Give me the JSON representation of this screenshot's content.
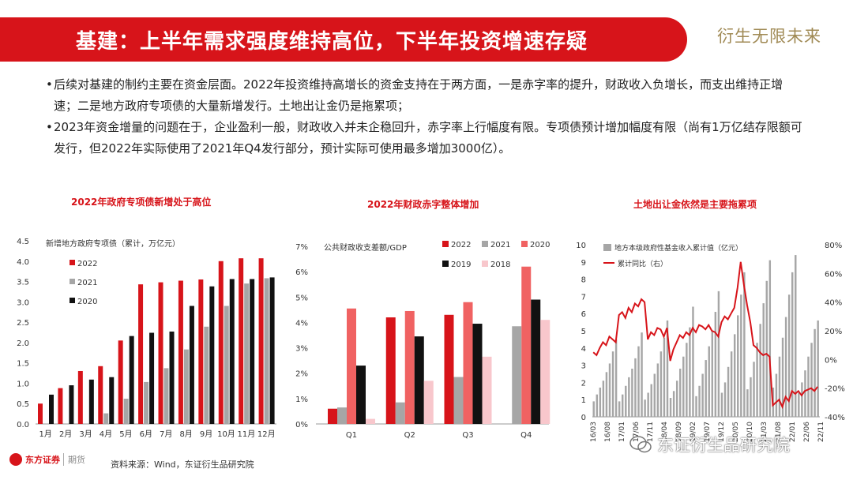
{
  "header": {
    "title": "基建：上半年需求强度维持高位，下半年投资增速存疑",
    "brand": "衍生无限未来"
  },
  "bullets": [
    "后续对基建的制约主要在资金层面。2022年投资维持高增长的资金支持在于两方面，一是赤字率的提升，财政收入负增长，而支出维持正增速；二是地方政府专项债的大量新增发行。土地出让金仍是拖累项；",
    "2023年资金增量的问题在于，企业盈利一般，财政收入并未企稳回升，赤字率上行幅度有限。专项债预计增加幅度有限（尚有1万亿结存限额可发行，但2022年实际使用了2021年Q4发行部分，预计实际可使用最多增加3000亿）。"
  ],
  "chart_titles": [
    "2022年政府专项债新增处于高位",
    "2022年财政赤字整体增加",
    "土地出让金依然是主要拖累项"
  ],
  "footer": {
    "logo_name": "东方证券",
    "logo_sub": "期货",
    "source": "资料来源：Wind，东证衍生品研究院",
    "watermark": "东证衍生品研究院"
  },
  "colors": {
    "red": "#d7141a",
    "gray": "#a6a6a6",
    "black": "#111111",
    "pink": "#f06262",
    "lightpink": "#f8c7cc"
  },
  "chart_data": [
    {
      "type": "bar",
      "title": "新增地方政府专项债（累计，万亿元）",
      "categories": [
        "1月",
        "2月",
        "3月",
        "4月",
        "5月",
        "6月",
        "7月",
        "8月",
        "9月",
        "10月",
        "11月",
        "12月"
      ],
      "series": [
        {
          "name": "2022",
          "color": "#d7141a",
          "values": [
            0.5,
            0.88,
            1.3,
            1.42,
            2.05,
            3.43,
            3.48,
            3.52,
            3.55,
            4.0,
            4.07,
            4.07
          ]
        },
        {
          "name": "2021",
          "color": "#a6a6a6",
          "values": [
            0,
            0,
            0,
            0.26,
            0.62,
            1.03,
            1.37,
            1.83,
            2.39,
            2.9,
            3.45,
            3.58
          ]
        },
        {
          "name": "2020",
          "color": "#111111",
          "values": [
            0.72,
            0.95,
            1.09,
            1.15,
            2.16,
            2.24,
            2.27,
            2.9,
            3.38,
            3.56,
            3.56,
            3.6
          ]
        }
      ],
      "ylim": [
        0,
        4.5
      ],
      "yticks": [
        "0.0",
        "0.5",
        "1.0",
        "1.5",
        "2.0",
        "2.5",
        "3.0",
        "3.5",
        "4.0",
        "4.5"
      ]
    },
    {
      "type": "bar",
      "title": "公共财政收支差额/GDP",
      "categories": [
        "Q1",
        "Q2",
        "Q3",
        "Q4"
      ],
      "series": [
        {
          "name": "2022",
          "color": "#d7141a",
          "values": [
            0.6,
            4.2,
            4.3,
            null
          ]
        },
        {
          "name": "2021",
          "color": "#a6a6a6",
          "values": [
            0.65,
            0.85,
            1.85,
            3.85
          ]
        },
        {
          "name": "2020",
          "color": "#f06262",
          "values": [
            4.55,
            4.45,
            4.8,
            6.2
          ]
        },
        {
          "name": "2019",
          "color": "#111111",
          "values": [
            2.3,
            3.45,
            3.95,
            4.9
          ]
        },
        {
          "name": "2018",
          "color": "#f8c7cc",
          "values": [
            0.2,
            1.7,
            2.65,
            4.1
          ]
        }
      ],
      "ylim": [
        0,
        7
      ],
      "yticks": [
        "0%",
        "1%",
        "2%",
        "3%",
        "4%",
        "5%",
        "6%",
        "7%"
      ]
    },
    {
      "type": "bar+line",
      "series": [
        {
          "name": "地方本级政府性基金收入累计值（亿元）",
          "axis": "left",
          "color": "#a6a6a6",
          "values": [
            0.9,
            1.3,
            1.7,
            2.1,
            2.6,
            3.1,
            3.8,
            4.5,
            0.9,
            1.3,
            1.8,
            2.3,
            2.8,
            3.4,
            4.1,
            4.9,
            1.0,
            1.4,
            1.9,
            2.5,
            3.1,
            3.8,
            4.6,
            5.6,
            1.1,
            1.5,
            2.1,
            2.8,
            3.5,
            4.3,
            5.2,
            6.4,
            1.2,
            1.8,
            2.5,
            3.3,
            4.1,
            5.0,
            6.1,
            7.3,
            1.4,
            2.0,
            2.9,
            3.8,
            4.8,
            5.9,
            7.1,
            8.4,
            1.6,
            2.3,
            3.2,
            4.3,
            5.4,
            6.6,
            7.9,
            9.1,
            1.7,
            2.5,
            3.5,
            4.6,
            5.8,
            7.1,
            8.4,
            9.4,
            1.4,
            2.0,
            2.7,
            3.5,
            4.3,
            5.1,
            5.6
          ]
        },
        {
          "name": "累计同比（右）",
          "axis": "right",
          "color": "#d7141a",
          "values": [
            5,
            3,
            8,
            12,
            10,
            16,
            14,
            12,
            31,
            33,
            29,
            36,
            33,
            39,
            37,
            42,
            40,
            14,
            19,
            17,
            22,
            21,
            16,
            22,
            -1,
            7,
            12,
            17,
            15,
            19,
            17,
            22,
            19,
            24,
            23,
            21,
            24,
            20,
            19,
            16,
            26,
            30,
            28,
            32,
            36,
            50,
            68,
            52,
            38,
            26,
            10,
            8,
            5,
            3,
            4,
            2,
            -32,
            -30,
            -28,
            -33,
            -26,
            -29,
            -22,
            -24,
            -22,
            -25,
            -22,
            -21,
            -20,
            -22,
            -19
          ]
        }
      ],
      "xticks": [
        "16/03",
        "16/08",
        "17/01",
        "17/06",
        "17/11",
        "18/04",
        "18/09",
        "19/02",
        "19/07",
        "19/12",
        "20/05",
        "20/10",
        "21/03",
        "21/08",
        "22/01",
        "22/06",
        "22/11"
      ],
      "ylim_left": [
        0,
        10
      ],
      "yticks_left": [
        "0",
        "1",
        "2",
        "3",
        "4",
        "5",
        "6",
        "7",
        "8",
        "9",
        "10"
      ],
      "ylim_right": [
        -40,
        80
      ],
      "yticks_right": [
        "-40%",
        "-20%",
        "0%",
        "20%",
        "40%",
        "60%",
        "80%"
      ]
    }
  ]
}
